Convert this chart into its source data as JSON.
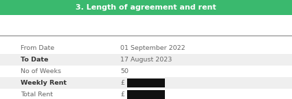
{
  "title": "3. Length of agreement and rent",
  "title_bg_color": "#3ab96e",
  "title_text_color": "#ffffff",
  "header_line_color": "#999999",
  "rows": [
    {
      "label": "From Date",
      "value": "01 September 2022",
      "bold_label": false,
      "shaded": false
    },
    {
      "label": "To Date",
      "value": "17 August 2023",
      "bold_label": true,
      "shaded": true
    },
    {
      "label": "No of Weeks",
      "value": "50",
      "bold_label": false,
      "shaded": false
    },
    {
      "label": "Weekly Rent",
      "value": "£",
      "bold_label": true,
      "shaded": true
    },
    {
      "label": "Total Rent",
      "value": "£",
      "bold_label": false,
      "shaded": false
    }
  ],
  "shaded_color": "#efefef",
  "label_color_normal": "#666666",
  "label_color_bold": "#333333",
  "value_color": "#666666",
  "font_size": 6.8,
  "redacted_box_color": "#111111"
}
